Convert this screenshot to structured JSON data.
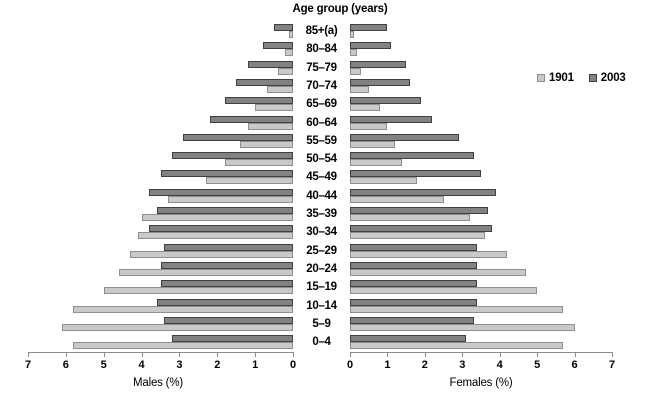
{
  "chart_data": {
    "type": "bar",
    "subtype": "population-pyramid",
    "title": "Age group (years)",
    "axis_left_label": "Males (%)",
    "axis_right_label": "Females (%)",
    "xlim": [
      0,
      7
    ],
    "ticks": [
      0,
      1,
      2,
      3,
      4,
      5,
      6,
      7
    ],
    "grid": false,
    "legend_position": "top-right",
    "bar_order_top_first": "2003",
    "age_groups": [
      "85+(a)",
      "80–84",
      "75–79",
      "70–74",
      "65–69",
      "60–64",
      "55–59",
      "50–54",
      "45–49",
      "40–44",
      "35–39",
      "30–34",
      "25–29",
      "20–24",
      "15–19",
      "10–14",
      "5–9",
      "0–4"
    ],
    "series": [
      {
        "name": "1901",
        "fill": "#c9c9c9",
        "border": "#8f8f8f",
        "males": [
          0.1,
          0.2,
          0.4,
          0.7,
          1.0,
          1.2,
          1.4,
          1.8,
          2.3,
          3.3,
          4.0,
          4.1,
          4.3,
          4.6,
          5.0,
          5.8,
          6.1,
          5.8
        ],
        "females": [
          0.1,
          0.2,
          0.3,
          0.5,
          0.8,
          1.0,
          1.2,
          1.4,
          1.8,
          2.5,
          3.2,
          3.6,
          4.2,
          4.7,
          5.0,
          5.7,
          6.0,
          5.7
        ]
      },
      {
        "name": "2003",
        "fill": "#828282",
        "border": "#404040",
        "males": [
          0.5,
          0.8,
          1.2,
          1.5,
          1.8,
          2.2,
          2.9,
          3.2,
          3.5,
          3.8,
          3.6,
          3.8,
          3.4,
          3.5,
          3.5,
          3.6,
          3.4,
          3.2
        ],
        "females": [
          1.0,
          1.1,
          1.5,
          1.6,
          1.9,
          2.2,
          2.9,
          3.3,
          3.5,
          3.9,
          3.7,
          3.8,
          3.4,
          3.4,
          3.4,
          3.4,
          3.3,
          3.1
        ]
      }
    ]
  }
}
